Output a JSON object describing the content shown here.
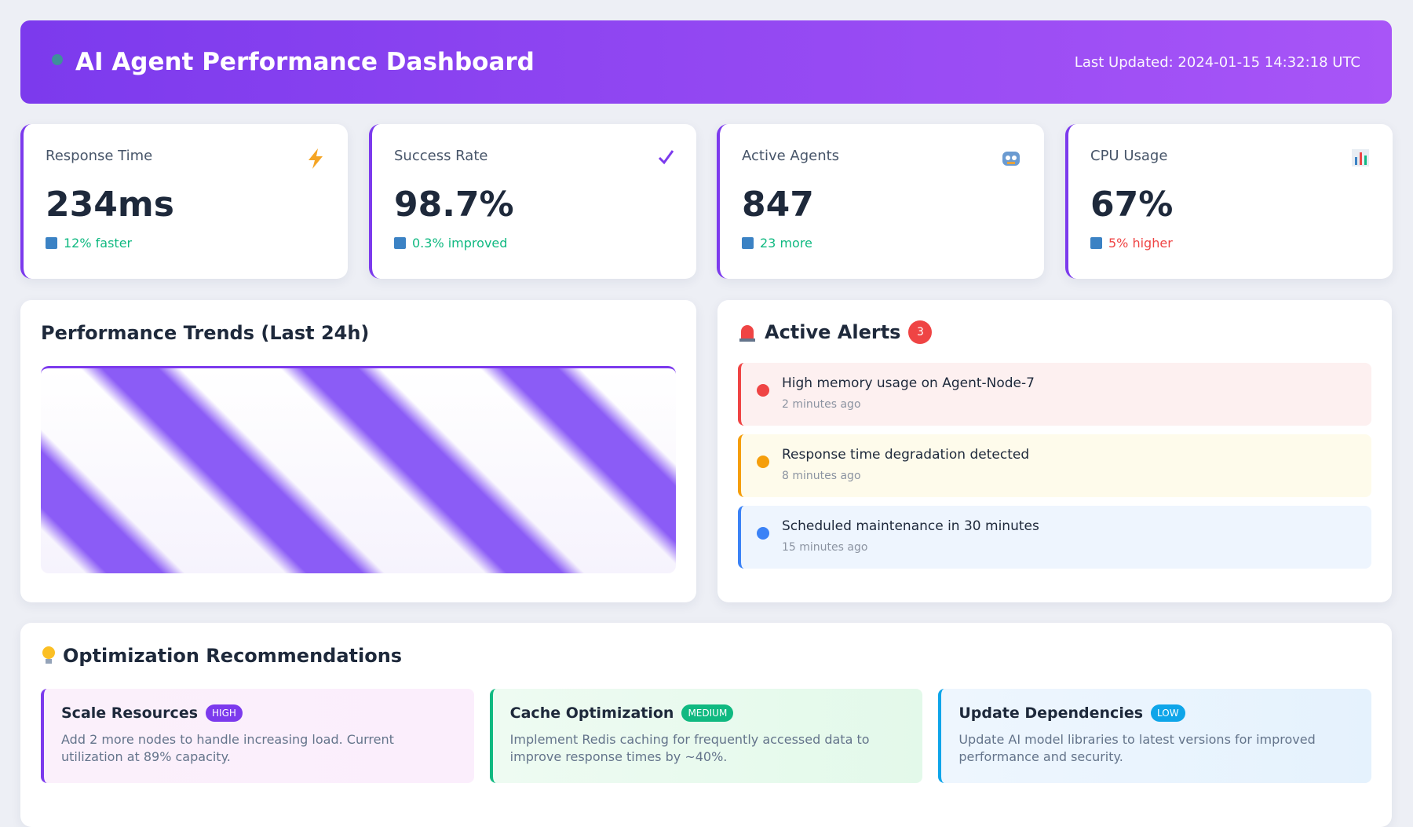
{
  "header": {
    "title": "AI Agent Performance Dashboard",
    "last_updated": "Last Updated: 2024-01-15 14:32:18 UTC"
  },
  "stats": [
    {
      "label": "Response Time",
      "value": "234ms",
      "change": "12% faster"
    },
    {
      "label": "Success Rate",
      "value": "98.7%",
      "change": "0.3% improved"
    },
    {
      "label": "Active Agents",
      "value": "847",
      "change": "23 more"
    },
    {
      "label": "CPU Usage",
      "value": "67%",
      "change": "5% higher"
    }
  ],
  "trends": {
    "title": "Performance Trends (Last 24h)"
  },
  "alerts": {
    "title": "Active Alerts",
    "count": 3,
    "items": [
      {
        "message": "High memory usage on Agent-Node-7",
        "time": "2 minutes ago"
      },
      {
        "message": "Response time degradation detected",
        "time": "8 minutes ago"
      },
      {
        "message": "Scheduled maintenance in 30 minutes",
        "time": "15 minutes ago"
      }
    ]
  },
  "recommendations": {
    "title": "Optimization Recommendations",
    "items": [
      {
        "title": "Scale Resources",
        "priority": "HIGH",
        "description": "Add 2 more nodes to handle increasing load. Current utilization at 89% capacity."
      },
      {
        "title": "Cache Optimization",
        "priority": "MEDIUM",
        "description": "Implement Redis caching for frequently accessed data to improve response times by ~40%."
      },
      {
        "title": "Update Dependencies",
        "priority": "LOW",
        "description": "Update AI model libraries to latest versions for improved performance and security."
      }
    ]
  }
}
